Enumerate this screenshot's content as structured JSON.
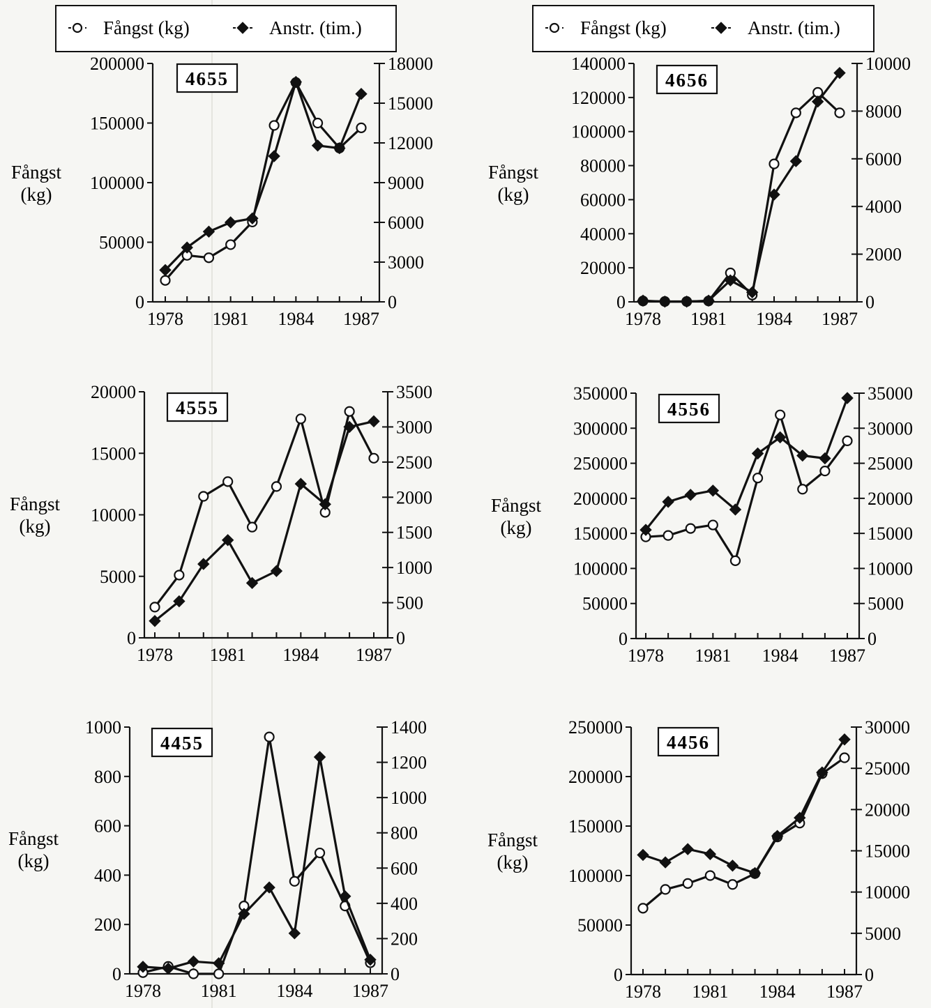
{
  "legend_items": [
    {
      "marker": "-o-",
      "label": "Fångst (kg)"
    },
    {
      "marker": "-◆-",
      "label": "Anstr. (tim.)"
    }
  ],
  "colors": {
    "ink": "#111111",
    "paper": "#f6f6f3",
    "open_marker_fill": "#ffffff"
  },
  "chart_data": [
    {
      "type": "line",
      "id": "4655",
      "ylabel": "Fångst (kg)",
      "x_ticks": [
        1978,
        1981,
        1984,
        1987
      ],
      "y_left": {
        "min": 0,
        "max": 200000,
        "ticks": [
          0,
          50000,
          100000,
          150000,
          200000
        ]
      },
      "y_right": {
        "min": 0,
        "max": 18000,
        "ticks": [
          0,
          3000,
          6000,
          9000,
          12000,
          15000,
          18000
        ]
      },
      "series": [
        {
          "name": "Fångst (kg)",
          "axis": "left",
          "marker": "open",
          "x": [
            1978,
            1979,
            1980,
            1981,
            1982,
            1983,
            1984,
            1985,
            1986,
            1987
          ],
          "y": [
            18000,
            39000,
            37000,
            48000,
            67000,
            148000,
            184000,
            150000,
            129000,
            146000
          ]
        },
        {
          "name": "Anstr. (tim.)",
          "axis": "right",
          "marker": "filled",
          "x": [
            1978,
            1979,
            1980,
            1981,
            1982,
            1983,
            1984,
            1985,
            1986,
            1987
          ],
          "y": [
            2400,
            4100,
            5300,
            6000,
            6300,
            11000,
            16600,
            11800,
            11600,
            15700
          ]
        }
      ]
    },
    {
      "type": "line",
      "id": "4656",
      "ylabel": "Fångst (kg)",
      "x_ticks": [
        1978,
        1981,
        1984,
        1987
      ],
      "y_left": {
        "min": 0,
        "max": 140000,
        "ticks": [
          0,
          20000,
          40000,
          60000,
          80000,
          100000,
          120000,
          140000
        ]
      },
      "y_right": {
        "min": 0,
        "max": 10000,
        "ticks": [
          0,
          2000,
          4000,
          6000,
          8000,
          10000
        ]
      },
      "series": [
        {
          "name": "Fångst (kg)",
          "axis": "left",
          "marker": "open",
          "x": [
            1978,
            1979,
            1980,
            1981,
            1982,
            1983,
            1984,
            1985,
            1986,
            1987
          ],
          "y": [
            500,
            200,
            200,
            500,
            17000,
            4000,
            81000,
            111000,
            123000,
            111000
          ]
        },
        {
          "name": "Anstr. (tim.)",
          "axis": "right",
          "marker": "filled",
          "x": [
            1978,
            1979,
            1980,
            1981,
            1982,
            1983,
            1984,
            1985,
            1986,
            1987
          ],
          "y": [
            50,
            10,
            10,
            50,
            900,
            400,
            4500,
            5900,
            8400,
            9600
          ]
        }
      ]
    },
    {
      "type": "line",
      "id": "4555",
      "ylabel": "Fångst (kg)",
      "x_ticks": [
        1978,
        1981,
        1984,
        1987
      ],
      "y_left": {
        "min": 0,
        "max": 20000,
        "ticks": [
          0,
          5000,
          10000,
          15000,
          20000
        ]
      },
      "y_right": {
        "min": 0,
        "max": 3500,
        "ticks": [
          0,
          500,
          1000,
          1500,
          2000,
          2500,
          3000,
          3500
        ]
      },
      "series": [
        {
          "name": "Fångst (kg)",
          "axis": "left",
          "marker": "open",
          "x": [
            1978,
            1979,
            1980,
            1981,
            1982,
            1983,
            1984,
            1985,
            1986,
            1987
          ],
          "y": [
            2500,
            5100,
            11500,
            12700,
            9000,
            12300,
            17800,
            10200,
            18400,
            14600
          ]
        },
        {
          "name": "Anstr. (tim.)",
          "axis": "right",
          "marker": "filled",
          "x": [
            1978,
            1979,
            1980,
            1981,
            1982,
            1983,
            1984,
            1985,
            1986,
            1987
          ],
          "y": [
            240,
            520,
            1050,
            1390,
            780,
            950,
            2190,
            1900,
            3000,
            3080
          ]
        }
      ]
    },
    {
      "type": "line",
      "id": "4556",
      "ylabel": "Fångst (kg)",
      "x_ticks": [
        1978,
        1981,
        1984,
        1987
      ],
      "y_left": {
        "min": 0,
        "max": 350000,
        "ticks": [
          0,
          50000,
          100000,
          150000,
          200000,
          250000,
          300000,
          350000
        ]
      },
      "y_right": {
        "min": 0,
        "max": 35000,
        "ticks": [
          0,
          5000,
          10000,
          15000,
          20000,
          25000,
          30000,
          35000
        ]
      },
      "series": [
        {
          "name": "Fångst (kg)",
          "axis": "left",
          "marker": "open",
          "x": [
            1978,
            1979,
            1980,
            1981,
            1982,
            1983,
            1984,
            1985,
            1986,
            1987
          ],
          "y": [
            145000,
            147000,
            157000,
            162000,
            111000,
            229000,
            319000,
            213000,
            239000,
            282000
          ]
        },
        {
          "name": "Anstr. (tim.)",
          "axis": "right",
          "marker": "filled",
          "x": [
            1978,
            1979,
            1980,
            1981,
            1982,
            1983,
            1984,
            1985,
            1986,
            1987
          ],
          "y": [
            15500,
            19500,
            20500,
            21100,
            18400,
            26400,
            28700,
            26100,
            25700,
            34300
          ]
        }
      ]
    },
    {
      "type": "line",
      "id": "4455",
      "ylabel": "Fångst (kg)",
      "x_ticks": [
        1978,
        1981,
        1984,
        1987
      ],
      "y_left": {
        "min": 0,
        "max": 1000,
        "ticks": [
          0,
          200,
          400,
          600,
          800,
          1000
        ]
      },
      "y_right": {
        "min": 0,
        "max": 1400,
        "ticks": [
          0,
          200,
          400,
          600,
          800,
          1000,
          1200,
          1400
        ]
      },
      "series": [
        {
          "name": "Fångst (kg)",
          "axis": "left",
          "marker": "open",
          "x": [
            1978,
            1979,
            1980,
            1981,
            1982,
            1983,
            1984,
            1985,
            1986,
            1987
          ],
          "y": [
            5,
            30,
            0,
            0,
            275,
            960,
            375,
            490,
            275,
            45
          ]
        },
        {
          "name": "Anstr. (tim.)",
          "axis": "right",
          "marker": "filled",
          "x": [
            1978,
            1979,
            1980,
            1981,
            1982,
            1983,
            1984,
            1985,
            1986,
            1987
          ],
          "y": [
            40,
            30,
            70,
            60,
            340,
            490,
            230,
            1230,
            440,
            80
          ]
        }
      ]
    },
    {
      "type": "line",
      "id": "4456",
      "ylabel": "Fångst (kg)",
      "x_ticks": [
        1978,
        1981,
        1984,
        1987
      ],
      "y_left": {
        "min": 0,
        "max": 250000,
        "ticks": [
          0,
          50000,
          100000,
          150000,
          200000,
          250000
        ]
      },
      "y_right": {
        "min": 0,
        "max": 30000,
        "ticks": [
          0,
          5000,
          10000,
          15000,
          20000,
          25000,
          30000
        ]
      },
      "series": [
        {
          "name": "Fångst (kg)",
          "axis": "left",
          "marker": "open",
          "x": [
            1978,
            1979,
            1980,
            1981,
            1982,
            1983,
            1984,
            1985,
            1986,
            1987
          ],
          "y": [
            67000,
            86000,
            92000,
            100000,
            91000,
            102000,
            139000,
            153000,
            203000,
            219000
          ]
        },
        {
          "name": "Anstr. (tim.)",
          "axis": "right",
          "marker": "filled",
          "x": [
            1978,
            1979,
            1980,
            1981,
            1982,
            1983,
            1984,
            1985,
            1986,
            1987
          ],
          "y": [
            14500,
            13600,
            15200,
            14600,
            13200,
            12300,
            16800,
            19000,
            24500,
            28500
          ]
        }
      ]
    }
  ]
}
